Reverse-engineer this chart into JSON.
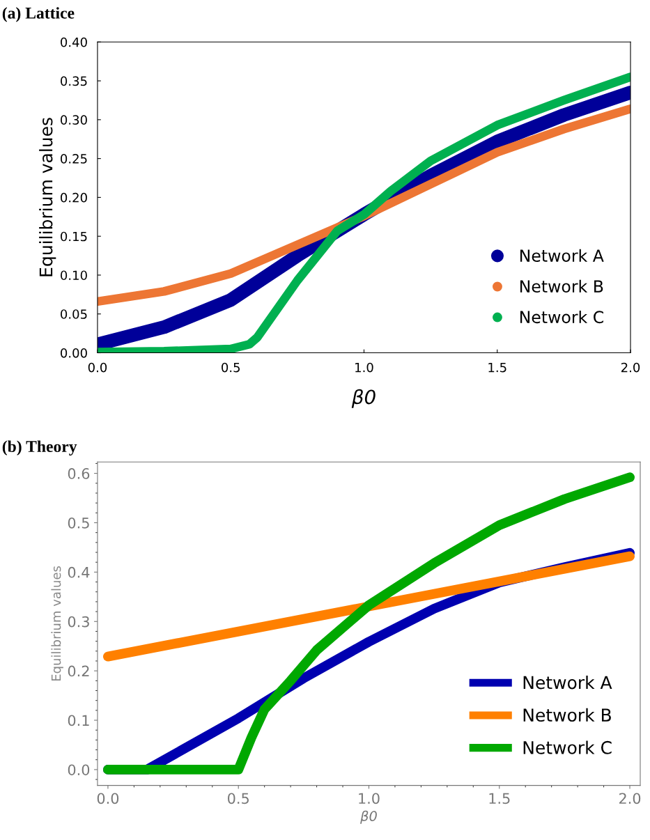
{
  "chart_data": [
    {
      "type": "line",
      "title": "(a) Lattice",
      "xlabel": "β0",
      "ylabel": "Equilibrium values",
      "xlim": [
        0,
        2
      ],
      "ylim": [
        0,
        0.4
      ],
      "xticks": [
        {
          "value": 0,
          "label": "0.0"
        },
        {
          "value": 0.5,
          "label": "0.5"
        },
        {
          "value": 1,
          "label": "1.0"
        },
        {
          "value": 1.5,
          "label": "1.5"
        },
        {
          "value": 2,
          "label": "2.0"
        }
      ],
      "yticks": [
        {
          "value": 0,
          "label": "0.00"
        },
        {
          "value": 0.05,
          "label": "0.05"
        },
        {
          "value": 0.1,
          "label": "0.10"
        },
        {
          "value": 0.15,
          "label": "0.15"
        },
        {
          "value": 0.2,
          "label": "0.20"
        },
        {
          "value": 0.25,
          "label": "0.25"
        },
        {
          "value": 0.3,
          "label": "0.30"
        },
        {
          "value": 0.35,
          "label": "0.35"
        },
        {
          "value": 0.4,
          "label": "0.40"
        }
      ],
      "legend": "bottom right",
      "grid": false,
      "series": [
        {
          "name": "Network A",
          "color": "#000099",
          "x": [
            0,
            0.25,
            0.5,
            0.75,
            1.0,
            1.25,
            1.5,
            1.75,
            2.0
          ],
          "values": [
            0.011,
            0.033,
            0.068,
            0.125,
            0.178,
            0.228,
            0.272,
            0.306,
            0.335
          ]
        },
        {
          "name": "Network B",
          "color": "#ed7634",
          "x": [
            0,
            0.25,
            0.5,
            0.75,
            1.0,
            1.25,
            1.5,
            1.75,
            2.0
          ],
          "values": [
            0.066,
            0.079,
            0.102,
            0.139,
            0.176,
            0.217,
            0.258,
            0.288,
            0.314
          ]
        },
        {
          "name": "Network C",
          "color": "#00b050",
          "x": [
            0,
            0.25,
            0.5,
            0.57,
            0.6,
            0.75,
            0.9,
            1.0,
            1.1,
            1.25,
            1.5,
            1.75,
            2.0
          ],
          "values": [
            0.001,
            0.002,
            0.005,
            0.011,
            0.02,
            0.093,
            0.157,
            0.178,
            0.208,
            0.247,
            0.293,
            0.325,
            0.355
          ]
        }
      ]
    },
    {
      "type": "line",
      "title": "(b) Theory",
      "xlabel": "β0",
      "ylabel": "Equilibrium values",
      "xlim": [
        -0.04,
        2.04
      ],
      "ylim": [
        -0.032,
        0.623
      ],
      "xticks": [
        {
          "value": 0,
          "label": "0.0"
        },
        {
          "value": 0.5,
          "label": "0.5"
        },
        {
          "value": 1,
          "label": "1.0"
        },
        {
          "value": 1.5,
          "label": "1.5"
        },
        {
          "value": 2,
          "label": "2.0"
        }
      ],
      "yticks": [
        {
          "value": 0,
          "label": "0.0"
        },
        {
          "value": 0.1,
          "label": "0.1"
        },
        {
          "value": 0.2,
          "label": "0.2"
        },
        {
          "value": 0.3,
          "label": "0.3"
        },
        {
          "value": 0.4,
          "label": "0.4"
        },
        {
          "value": 0.5,
          "label": "0.5"
        },
        {
          "value": 0.6,
          "label": "0.6"
        }
      ],
      "legend": "bottom right",
      "grid": false,
      "series": [
        {
          "name": "Network A",
          "color": "#0000b0",
          "x": [
            0,
            0.15,
            0.5,
            0.75,
            1.0,
            1.25,
            1.5,
            1.75,
            2.0
          ],
          "values": [
            0,
            0,
            0.104,
            0.185,
            0.259,
            0.326,
            0.379,
            0.41,
            0.439
          ]
        },
        {
          "name": "Network B",
          "color": "#ff8000",
          "x": [
            0,
            2.0
          ],
          "values": [
            0.229,
            0.432
          ]
        },
        {
          "name": "Network C",
          "color": "#00a800",
          "x": [
            0,
            0.5,
            0.55,
            0.6,
            0.7,
            0.8,
            1.0,
            1.25,
            1.5,
            1.75,
            2.0
          ],
          "values": [
            0,
            0,
            0.065,
            0.122,
            0.18,
            0.242,
            0.333,
            0.418,
            0.495,
            0.548,
            0.592
          ]
        }
      ]
    }
  ]
}
